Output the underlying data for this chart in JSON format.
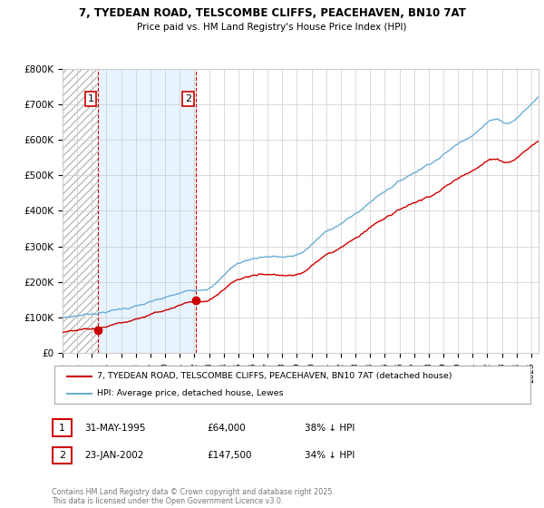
{
  "title1": "7, TYEDEAN ROAD, TELSCOMBE CLIFFS, PEACEHAVEN, BN10 7AT",
  "title2": "Price paid vs. HM Land Registry's House Price Index (HPI)",
  "ylim": [
    0,
    800000
  ],
  "yticks": [
    0,
    100000,
    200000,
    300000,
    400000,
    500000,
    600000,
    700000,
    800000
  ],
  "ytick_labels": [
    "£0",
    "£100K",
    "£200K",
    "£300K",
    "£400K",
    "£500K",
    "£600K",
    "£700K",
    "£800K"
  ],
  "hpi_color": "#6baed6",
  "price_color": "#cc0000",
  "legend_label_price": "7, TYEDEAN ROAD, TELSCOMBE CLIFFS, PEACEHAVEN, BN10 7AT (detached house)",
  "legend_label_hpi": "HPI: Average price, detached house, Lewes",
  "annotation1_date": "31-MAY-1995",
  "annotation1_price": "£64,000",
  "annotation1_pct": "38% ↓ HPI",
  "annotation2_date": "23-JAN-2002",
  "annotation2_price": "£147,500",
  "annotation2_pct": "34% ↓ HPI",
  "footer": "Contains HM Land Registry data © Crown copyright and database right 2025.\nThis data is licensed under the Open Government Licence v3.0.",
  "sale1_x": 1995.41,
  "sale1_y": 64000,
  "sale2_x": 2002.07,
  "sale2_y": 147500,
  "xmin": 1993,
  "xmax": 2025.5
}
